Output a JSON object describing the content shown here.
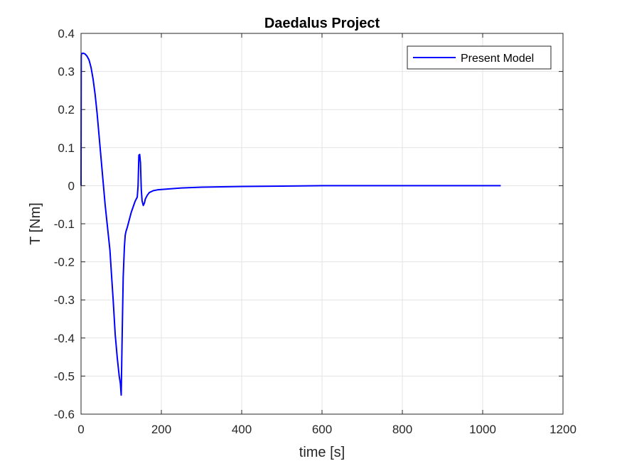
{
  "chart_data": {
    "type": "line",
    "title": "Daedalus Project",
    "xlabel": "time [s]",
    "ylabel": "T [Nm]",
    "xlim": [
      0,
      1200
    ],
    "ylim": [
      -0.6,
      0.4
    ],
    "xticks": [
      0,
      200,
      400,
      600,
      800,
      1000,
      1200
    ],
    "xtick_labels": [
      "0",
      "200",
      "400",
      "600",
      "800",
      "1000",
      "1200"
    ],
    "yticks": [
      -0.6,
      -0.5,
      -0.4,
      -0.3,
      -0.2,
      -0.1,
      0,
      0.1,
      0.2,
      0.3,
      0.4
    ],
    "ytick_labels": [
      "-0.6",
      "-0.5",
      "-0.4",
      "-0.3",
      "-0.2",
      "-0.1",
      "0",
      "0.1",
      "0.2",
      "0.3",
      "0.4"
    ],
    "grid": true,
    "legend_position": "top-right",
    "series": [
      {
        "name": "Present Model",
        "color": "#0000FF",
        "x": [
          0,
          0.5,
          1,
          3,
          5,
          10,
          15,
          20,
          25,
          30,
          35,
          40,
          45,
          50,
          55,
          60,
          65,
          68,
          70,
          72,
          75,
          80,
          85,
          90,
          95,
          98,
          100,
          102,
          105,
          108,
          110,
          112,
          115,
          120,
          125,
          130,
          135,
          140,
          142,
          144,
          146,
          148,
          150,
          152,
          155,
          158,
          160,
          165,
          170,
          180,
          190,
          200,
          250,
          300,
          400,
          500,
          600,
          700,
          800,
          900,
          1000,
          1045
        ],
        "y": [
          0,
          0.34,
          0.347,
          0.347,
          0.348,
          0.346,
          0.34,
          0.33,
          0.31,
          0.28,
          0.24,
          0.19,
          0.13,
          0.07,
          0.01,
          -0.05,
          -0.1,
          -0.13,
          -0.15,
          -0.17,
          -0.22,
          -0.3,
          -0.39,
          -0.45,
          -0.5,
          -0.52,
          -0.55,
          -0.42,
          -0.24,
          -0.16,
          -0.13,
          -0.12,
          -0.11,
          -0.09,
          -0.07,
          -0.055,
          -0.04,
          -0.03,
          0,
          0.08,
          0.082,
          0.06,
          -0.01,
          -0.04,
          -0.052,
          -0.045,
          -0.035,
          -0.025,
          -0.018,
          -0.013,
          -0.011,
          -0.01,
          -0.006,
          -0.004,
          -0.002,
          -0.001,
          0,
          0,
          0,
          0,
          0,
          0
        ]
      }
    ]
  }
}
